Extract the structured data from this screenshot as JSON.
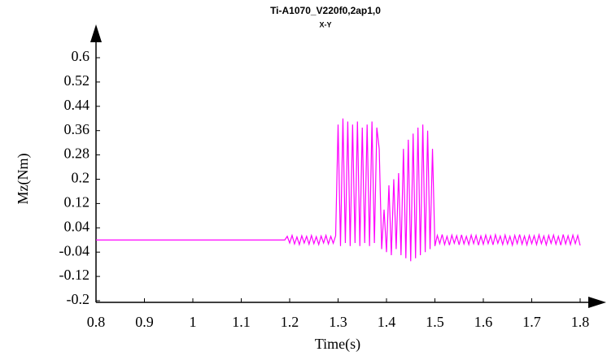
{
  "chart_data": {
    "type": "line",
    "title": "Ti-A1070_V220f0,2ap1,0",
    "subtitle": "X-Y",
    "x_label": "Time(s)",
    "y_label": "Mz(Nm)",
    "color": "#ff00ff",
    "grid": false,
    "xlim": [
      0.8,
      1.8
    ],
    "xticks": [
      0.8,
      0.9,
      1,
      1.1,
      1.2,
      1.3,
      1.4,
      1.5,
      1.6,
      1.7,
      1.8
    ],
    "ylim": [
      -0.2,
      0.6
    ],
    "yticks": [
      -0.2,
      -0.12,
      -0.04,
      0.04,
      0.12,
      0.2,
      0.28,
      0.36,
      0.44,
      0.52,
      0.6
    ],
    "x": [
      0.8,
      1.19,
      1.195,
      1.2,
      1.205,
      1.21,
      1.215,
      1.22,
      1.225,
      1.23,
      1.235,
      1.24,
      1.245,
      1.25,
      1.255,
      1.26,
      1.265,
      1.27,
      1.275,
      1.28,
      1.285,
      1.29,
      1.295,
      1.3,
      1.305,
      1.31,
      1.315,
      1.32,
      1.325,
      1.33,
      1.335,
      1.34,
      1.345,
      1.35,
      1.355,
      1.36,
      1.365,
      1.37,
      1.375,
      1.38,
      1.385,
      1.39,
      1.395,
      1.4,
      1.405,
      1.41,
      1.415,
      1.42,
      1.425,
      1.43,
      1.435,
      1.44,
      1.445,
      1.45,
      1.455,
      1.46,
      1.465,
      1.47,
      1.475,
      1.48,
      1.485,
      1.49,
      1.495,
      1.5,
      1.505,
      1.51,
      1.515,
      1.52,
      1.525,
      1.53,
      1.535,
      1.54,
      1.545,
      1.55,
      1.555,
      1.56,
      1.565,
      1.57,
      1.575,
      1.58,
      1.585,
      1.59,
      1.595,
      1.6,
      1.605,
      1.61,
      1.615,
      1.62,
      1.625,
      1.63,
      1.635,
      1.64,
      1.645,
      1.65,
      1.655,
      1.66,
      1.665,
      1.67,
      1.675,
      1.68,
      1.685,
      1.69,
      1.695,
      1.7,
      1.705,
      1.71,
      1.715,
      1.72,
      1.725,
      1.73,
      1.735,
      1.74,
      1.745,
      1.75,
      1.755,
      1.76,
      1.765,
      1.77,
      1.775,
      1.78,
      1.785,
      1.79,
      1.795,
      1.8
    ],
    "values": [
      0,
      0,
      0.012,
      -0.01,
      0.015,
      -0.013,
      0.01,
      -0.015,
      0.014,
      -0.01,
      0.012,
      -0.014,
      0.015,
      -0.012,
      0.011,
      -0.015,
      0.013,
      -0.01,
      0.015,
      -0.013,
      0.012,
      -0.011,
      0.014,
      0.38,
      -0.02,
      0.4,
      -0.01,
      0.39,
      -0.02,
      0.38,
      -0.01,
      0.39,
      -0.02,
      0.37,
      -0.01,
      0.38,
      -0.02,
      0.39,
      -0.01,
      0.37,
      0.3,
      -0.03,
      0.1,
      -0.04,
      0.18,
      -0.05,
      0.2,
      -0.03,
      0.22,
      -0.05,
      0.3,
      -0.06,
      0.33,
      -0.07,
      0.35,
      -0.06,
      0.37,
      -0.05,
      0.38,
      -0.04,
      0.36,
      -0.03,
      0.3,
      -0.02,
      0.015,
      -0.012,
      0.018,
      -0.015,
      0.012,
      -0.017,
      0.016,
      -0.011,
      0.014,
      -0.016,
      0.017,
      -0.013,
      0.012,
      -0.015,
      0.016,
      -0.012,
      0.015,
      -0.017,
      0.013,
      -0.014,
      0.016,
      -0.012,
      0.014,
      -0.016,
      0.017,
      -0.011,
      0.013,
      -0.015,
      0.016,
      -0.013,
      0.012,
      -0.017,
      0.015,
      -0.012,
      0.018,
      -0.014,
      0.013,
      -0.016,
      0.015,
      -0.012,
      0.014,
      -0.015,
      0.017,
      -0.012,
      0.013,
      -0.016,
      0.015,
      -0.011,
      0.016,
      -0.014,
      0.012,
      -0.017,
      0.018,
      -0.013,
      0.014,
      -0.015,
      0.016,
      -0.012,
      0.015,
      -0.018
    ]
  }
}
